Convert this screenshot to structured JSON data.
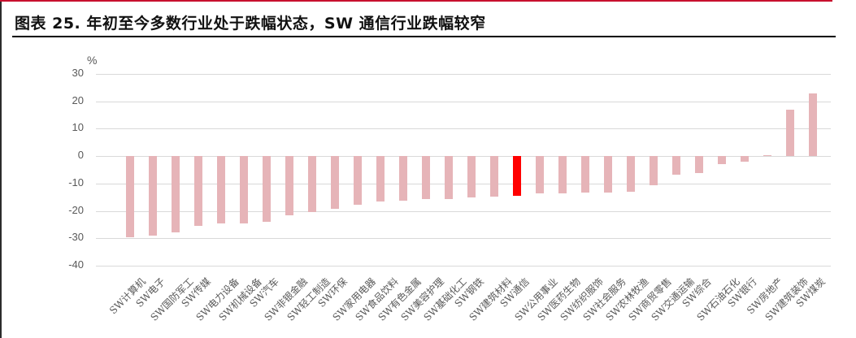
{
  "title": "图表 25. 年初至今多数行业处于跌幅状态，SW 通信行业跌幅较窄",
  "colors": {
    "bar": "#E6B4B8",
    "highlight": "#FF0000",
    "grid": "#D9D9D9",
    "top_rule": "#C8102E"
  },
  "chart_data": {
    "type": "bar",
    "title": "年初至今多数行业处于跌幅状态，SW 通信行业跌幅较窄",
    "xlabel": "",
    "ylabel": "%",
    "ylim": [
      -40,
      30
    ],
    "yticks": [
      30,
      20,
      10,
      0,
      -10,
      -20,
      -30,
      -40
    ],
    "grid": true,
    "legend": null,
    "highlight": "SW通信",
    "categories": [
      "SW计算机",
      "SW电子",
      "SW国防军工",
      "SW传媒",
      "SW电力设备",
      "SW机械设备",
      "SW汽车",
      "SW非银金融",
      "SW轻工制造",
      "SW环保",
      "SW家用电器",
      "SW食品饮料",
      "SW有色金属",
      "SW美容护理",
      "SW基础化工",
      "SW钢铁",
      "SW建筑材料",
      "SW通信",
      "SW公用事业",
      "SW医药生物",
      "SW纺织服饰",
      "SW社会服务",
      "SW农林牧渔",
      "SW商贸零售",
      "SW交通运输",
      "SW综合",
      "SW石油石化",
      "SW银行",
      "SW房地产",
      "SW建筑装饰",
      "SW煤炭"
    ],
    "values": [
      -29.5,
      -29.0,
      -27.8,
      -25.4,
      -24.7,
      -24.7,
      -23.9,
      -21.6,
      -20.4,
      -19.4,
      -17.9,
      -16.7,
      -16.4,
      -15.7,
      -15.7,
      -15.1,
      -14.8,
      -14.4,
      -13.7,
      -13.7,
      -13.3,
      -13.3,
      -13.0,
      -10.6,
      -6.7,
      -6.1,
      -3.1,
      -2.1,
      0.4,
      17.0,
      22.8
    ]
  }
}
